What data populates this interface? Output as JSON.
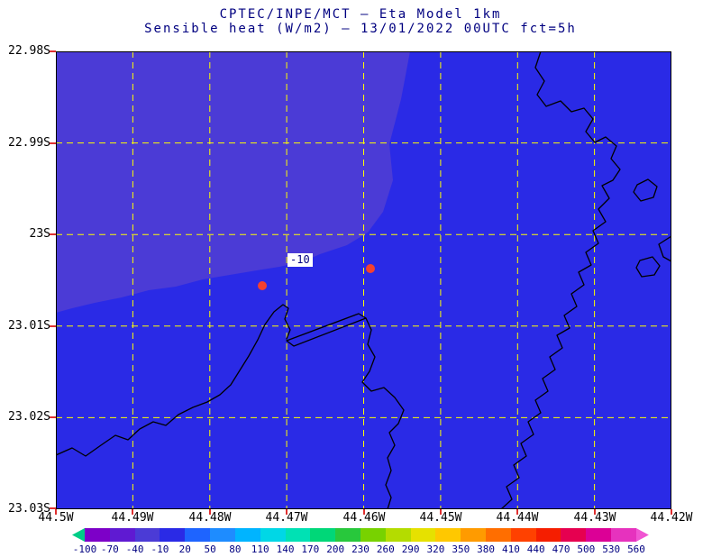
{
  "title": {
    "line1": "CPTEC/INPE/MCT —  Eta Model 1km",
    "line2": "Sensible heat (W/m2) — 13/01/2022 00UTC fct=5h"
  },
  "axes": {
    "y_labels": [
      "22.98S",
      "22.99S",
      "23S",
      "23.01S",
      "23.02S",
      "23.03S"
    ],
    "x_labels": [
      "44.5W",
      "44.49W",
      "44.48W",
      "44.47W",
      "44.46W",
      "44.45W",
      "44.44W",
      "44.43W",
      "44.42W"
    ]
  },
  "map": {
    "sea_color": "#2a2ae6",
    "negative_region_color": "#4b3bd6",
    "grid_color": "#ffff00",
    "coastline_color": "#000000",
    "marker_color": "#f5402e",
    "contour_label": "-10",
    "markers": [
      {
        "x": 229,
        "y": 260
      },
      {
        "x": 349,
        "y": 241
      }
    ]
  },
  "colorbar": {
    "tick_labels": [
      "-100",
      "-70",
      "-40",
      "-10",
      "20",
      "50",
      "80",
      "110",
      "140",
      "170",
      "200",
      "230",
      "260",
      "290",
      "320",
      "350",
      "380",
      "410",
      "440",
      "470",
      "500",
      "530",
      "560"
    ],
    "segment_colors": [
      "#00cd87",
      "#7d00c8",
      "#5f1ad2",
      "#4b3bd6",
      "#2a2ae6",
      "#1e64ff",
      "#1e8cff",
      "#00b4ff",
      "#00d7e6",
      "#00e1b4",
      "#00d778",
      "#28c83c",
      "#78d200",
      "#b4dc00",
      "#e6e100",
      "#ffc800",
      "#ff9b00",
      "#ff6e00",
      "#ff4100",
      "#f51e00",
      "#e60050",
      "#dc0096",
      "#e632be",
      "#f055d2"
    ]
  },
  "chart_data": {
    "type": "heatmap",
    "title": "CPTEC/INPE/MCT — Eta Model 1km",
    "subtitle": "Sensible heat (W/m2) — 13/01/2022 00UTC fct=5h",
    "variable": "Sensible heat (W/m2)",
    "model": "Eta Model 1km",
    "valid_time": "13/01/2022 00UTC fct=5h",
    "x_ticks": [
      "44.5W",
      "44.49W",
      "44.48W",
      "44.47W",
      "44.46W",
      "44.45W",
      "44.44W",
      "44.43W",
      "44.42W"
    ],
    "y_ticks": [
      "22.98S",
      "22.99S",
      "23S",
      "23.01S",
      "23.02S",
      "23.03S"
    ],
    "xlim": [
      "44.5W",
      "44.42W"
    ],
    "ylim": [
      "23.03S",
      "22.98S"
    ],
    "levels": [
      -100,
      -70,
      -40,
      -10,
      20,
      50,
      80,
      110,
      140,
      170,
      200,
      230,
      260,
      290,
      320,
      350,
      380,
      410,
      440,
      470,
      500,
      530,
      560
    ],
    "shaded_regions": [
      {
        "value_bin": "-40 to -10",
        "color": "#4b3bd6",
        "location": "upper-left quadrant of domain (offshore)"
      },
      {
        "value_bin": "-10 to 20",
        "color": "#2a2ae6",
        "location": "remainder of entire domain"
      }
    ],
    "contour_labels": [
      {
        "text": "-10",
        "location": "boundary between the two shaded regions near 44.47W, 23.00S"
      }
    ],
    "point_markers": [
      {
        "color": "#f5402e",
        "location": "near 44.472W, 23.005S"
      },
      {
        "color": "#f5402e",
        "location": "near 44.458W, 23.004S"
      }
    ],
    "grid": true,
    "grid_style": "yellow dashed",
    "legend_position": "bottom horizontal colorbar with end arrows"
  }
}
